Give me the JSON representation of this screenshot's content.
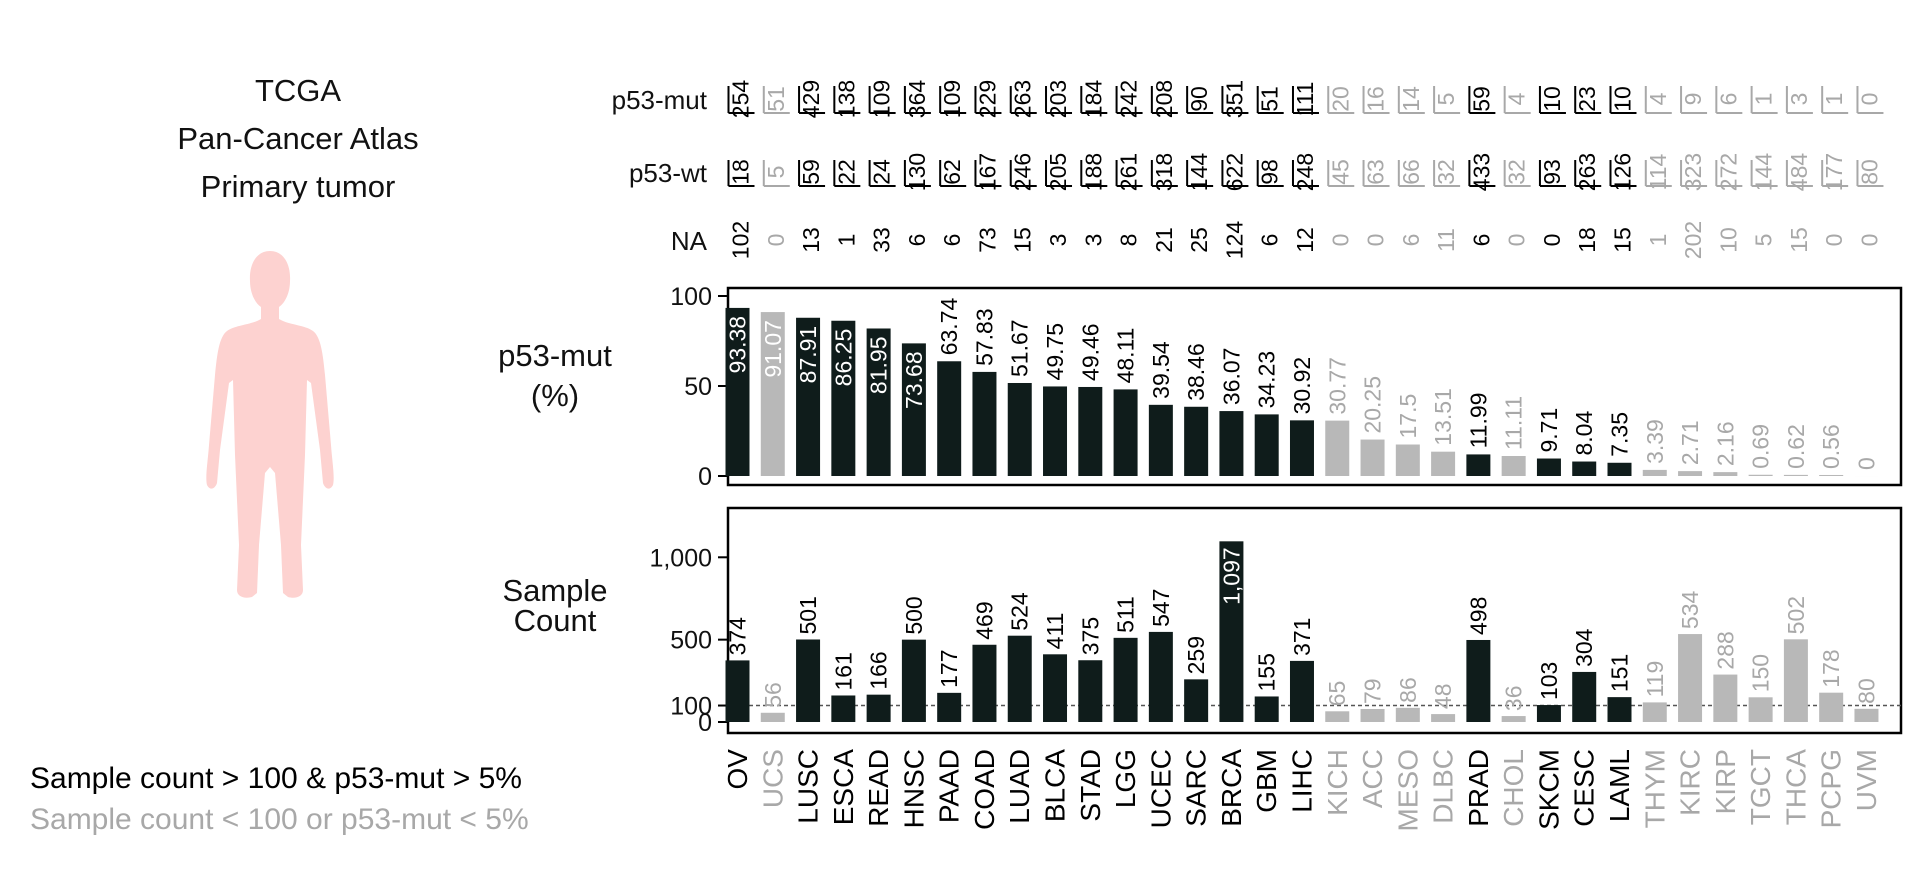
{
  "header": {
    "title_lines": [
      "TCGA",
      "Pan-Cancer Atlas",
      "Primary tumor"
    ]
  },
  "legend": {
    "included": "Sample count > 100 & p53-mut > 5%",
    "excluded": "Sample count < 100 or p53-mut < 5%"
  },
  "colors": {
    "included": "#0f1c1b",
    "excluded": "#b8b8b8",
    "excluded_text": "#a8a8a8",
    "figure": "#fdd2d0"
  },
  "rows": {
    "mut_label": "p53-mut",
    "wt_label": "p53-wt",
    "na_label": "NA"
  },
  "chart_data": [
    {
      "type": "bar",
      "title": "",
      "ylabel": "p53-mut (%)",
      "ylabel_lines": [
        "p53-mut",
        "(%)"
      ],
      "ylim": [
        0,
        100
      ],
      "yticks": [
        0,
        50,
        100
      ],
      "ytick_labels": [
        "0",
        "50",
        "100"
      ],
      "categories": [
        "OV",
        "UCS",
        "LUSC",
        "ESCA",
        "READ",
        "HNSC",
        "PAAD",
        "COAD",
        "LUAD",
        "BLCA",
        "STAD",
        "LGG",
        "UCEC",
        "SARC",
        "BRCA",
        "GBM",
        "LIHC",
        "KICH",
        "ACC",
        "MESO",
        "DLBC",
        "PRAD",
        "CHOL",
        "SKCM",
        "CESC",
        "LAML",
        "THYM",
        "KIRC",
        "KIRP",
        "TGCT",
        "THCA",
        "PCPG",
        "UVM"
      ],
      "values": [
        93.38,
        91.07,
        87.91,
        86.25,
        81.95,
        73.68,
        63.74,
        57.83,
        51.67,
        49.75,
        49.46,
        48.11,
        39.54,
        38.46,
        36.07,
        34.23,
        30.92,
        30.77,
        20.25,
        17.5,
        13.51,
        11.99,
        11.11,
        9.71,
        8.04,
        7.35,
        3.39,
        2.71,
        2.16,
        0.69,
        0.62,
        0.56,
        0
      ],
      "value_labels": [
        "93.38",
        "91.07",
        "87.91",
        "86.25",
        "81.95",
        "73.68",
        "63.74",
        "57.83",
        "51.67",
        "49.75",
        "49.46",
        "48.11",
        "39.54",
        "38.46",
        "36.07",
        "34.23",
        "30.92",
        "30.77",
        "20.25",
        "17.5",
        "13.51",
        "11.99",
        "11.11",
        "9.71",
        "8.04",
        "7.35",
        "3.39",
        "2.71",
        "2.16",
        "0.69",
        "0.62",
        "0.56",
        "0"
      ],
      "included": [
        true,
        false,
        true,
        true,
        true,
        true,
        true,
        true,
        true,
        true,
        true,
        true,
        true,
        true,
        true,
        true,
        true,
        false,
        false,
        false,
        false,
        true,
        false,
        true,
        true,
        true,
        false,
        false,
        false,
        false,
        false,
        false,
        false
      ],
      "p53_mut": [
        "254",
        "51",
        "429",
        "138",
        "109",
        "364",
        "109",
        "229",
        "263",
        "203",
        "184",
        "242",
        "208",
        "90",
        "351",
        "51",
        "111",
        "20",
        "16",
        "14",
        "5",
        "59",
        "4",
        "10",
        "23",
        "10",
        "4",
        "9",
        "6",
        "1",
        "3",
        "1",
        "0"
      ],
      "p53_wt": [
        "18",
        "5",
        "59",
        "22",
        "24",
        "130",
        "62",
        "167",
        "246",
        "205",
        "188",
        "261",
        "318",
        "144",
        "622",
        "98",
        "248",
        "45",
        "63",
        "66",
        "32",
        "433",
        "32",
        "93",
        "263",
        "126",
        "114",
        "323",
        "272",
        "144",
        "484",
        "177",
        "80"
      ],
      "na": [
        "102",
        "0",
        "13",
        "1",
        "33",
        "6",
        "6",
        "73",
        "15",
        "3",
        "3",
        "8",
        "21",
        "25",
        "124",
        "6",
        "12",
        "0",
        "0",
        "6",
        "11",
        "6",
        "0",
        "0",
        "18",
        "15",
        "1",
        "202",
        "10",
        "5",
        "15",
        "0",
        "0"
      ],
      "grid": false,
      "legend": "none"
    },
    {
      "type": "bar",
      "title": "",
      "ylabel": "Sample Count",
      "ylabel_lines": [
        "Sample",
        "Count"
      ],
      "ylim": [
        0,
        1160
      ],
      "yticks": [
        0,
        100,
        500,
        1000
      ],
      "ytick_labels": [
        "0",
        "100",
        "500",
        "1,000"
      ],
      "reference_line": 100,
      "categories": [
        "OV",
        "UCS",
        "LUSC",
        "ESCA",
        "READ",
        "HNSC",
        "PAAD",
        "COAD",
        "LUAD",
        "BLCA",
        "STAD",
        "LGG",
        "UCEC",
        "SARC",
        "BRCA",
        "GBM",
        "LIHC",
        "KICH",
        "ACC",
        "MESO",
        "DLBC",
        "PRAD",
        "CHOL",
        "SKCM",
        "CESC",
        "LAML",
        "THYM",
        "KIRC",
        "KIRP",
        "TGCT",
        "THCA",
        "PCPG",
        "UVM"
      ],
      "values": [
        374,
        56,
        501,
        161,
        166,
        500,
        177,
        469,
        524,
        411,
        375,
        511,
        547,
        259,
        1097,
        155,
        371,
        65,
        79,
        86,
        48,
        498,
        36,
        103,
        304,
        151,
        119,
        534,
        288,
        150,
        502,
        178,
        80
      ],
      "value_labels": [
        "374",
        "56",
        "501",
        "161",
        "166",
        "500",
        "177",
        "469",
        "524",
        "411",
        "375",
        "511",
        "547",
        "259",
        "1,097",
        "155",
        "371",
        "65",
        "79",
        "86",
        "48",
        "498",
        "36",
        "103",
        "304",
        "151",
        "119",
        "534",
        "288",
        "150",
        "502",
        "178",
        "80"
      ],
      "grid": false,
      "legend": "none"
    }
  ]
}
